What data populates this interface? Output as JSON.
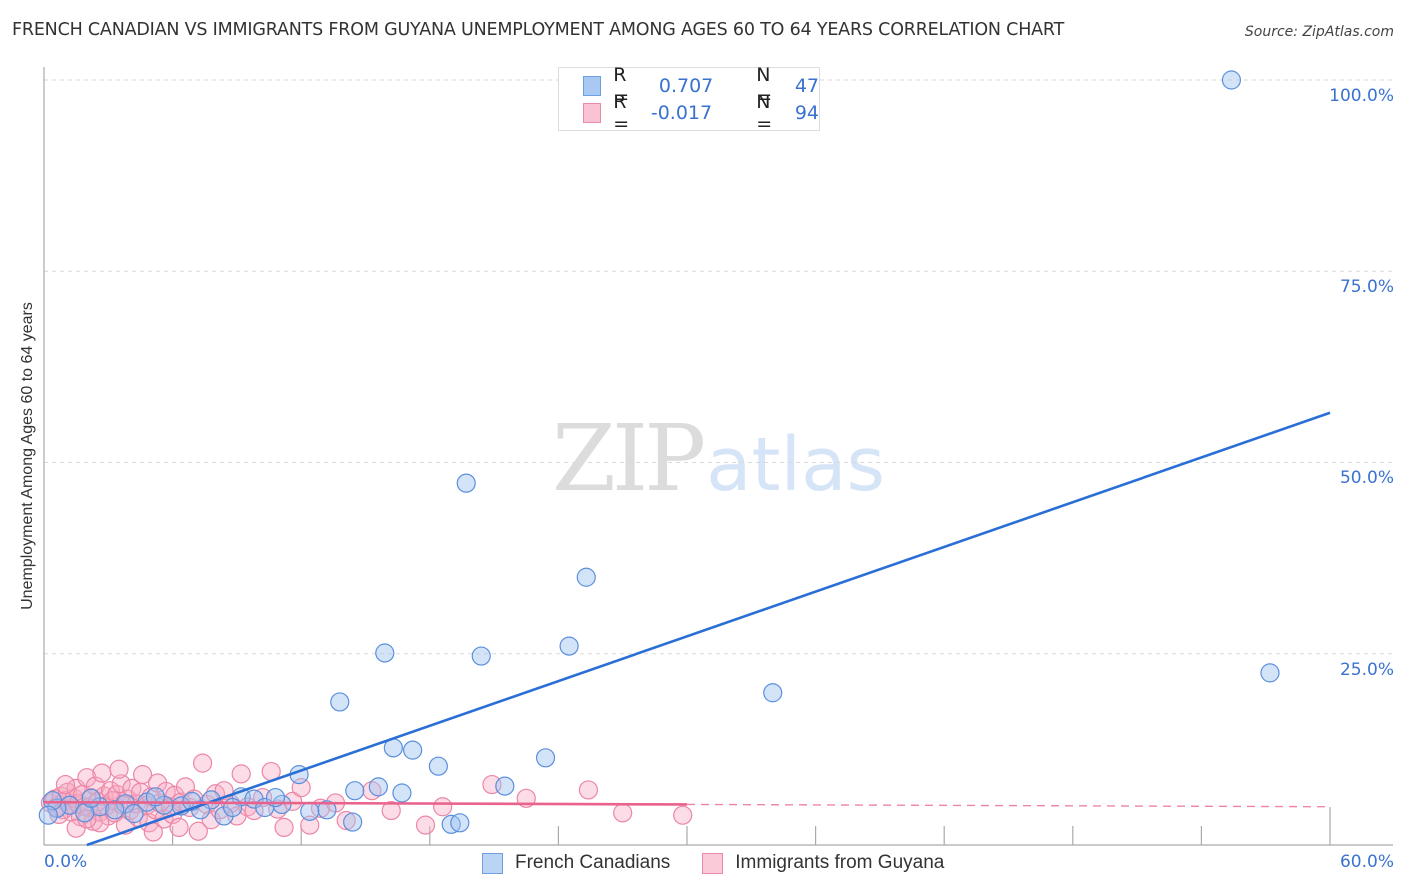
{
  "header": {
    "title": "FRENCH CANADIAN VS IMMIGRANTS FROM GUYANA UNEMPLOYMENT AMONG AGES 60 TO 64 YEARS CORRELATION CHART",
    "source": "Source: ZipAtlas.com"
  },
  "watermark": {
    "zip": "ZIP",
    "atlas": "atlas"
  },
  "axes": {
    "ylabel": "Unemployment Among Ages 60 to 64 years",
    "y_ticks": [
      "100.0%",
      "75.0%",
      "50.0%",
      "25.0%"
    ],
    "x_tick_left": "0.0%",
    "x_tick_right": "60.0%"
  },
  "legend_top": {
    "rows": [
      {
        "r_label": "R =",
        "r_value": "0.707",
        "n_label": "N =",
        "n_value": "47",
        "color": "#a9c9f2",
        "border": "#6f9fe0"
      },
      {
        "r_label": "R =",
        "r_value": "-0.017",
        "n_label": "N =",
        "n_value": "94",
        "color": "#f9c3d3",
        "border": "#e88aa8"
      }
    ]
  },
  "legend_bottom": {
    "items": [
      {
        "label": "French Canadians",
        "color": "#b9d4f5",
        "border": "#6f9fe0"
      },
      {
        "label": "Immigrants from Guyana",
        "color": "#fbcad8",
        "border": "#e88aa8"
      }
    ]
  },
  "colors": {
    "blue_fill": "rgba(160,196,240,0.45)",
    "blue_stroke": "#5b8fdc",
    "blue_line": "#2a6fd6",
    "pink_fill": "rgba(248,170,195,0.40)",
    "pink_stroke": "#ec86a6",
    "pink_line": "#e8628c",
    "grid": "#d9d9d9",
    "axis": "#aaaaaa"
  },
  "chart_data": {
    "type": "scatter",
    "title": "FRENCH CANADIAN VS IMMIGRANTS FROM GUYANA UNEMPLOYMENT AMONG AGES 60 TO 64 YEARS CORRELATION CHART",
    "xlabel": "",
    "ylabel": "Unemployment Among Ages 60 to 64 years",
    "xlim": [
      0,
      60
    ],
    "ylim": [
      0,
      100
    ],
    "x_ticks": [
      0,
      6,
      12,
      18,
      24,
      30,
      36,
      42,
      48,
      54,
      60
    ],
    "y_ticks": [
      25,
      50,
      75,
      100
    ],
    "grid": true,
    "legend_position": "top-center",
    "series": [
      {
        "name": "French Canadians",
        "R": 0.707,
        "N": 47,
        "trendline": {
          "x": [
            2.0,
            60.0
          ],
          "y": [
            0.0,
            56.5
          ],
          "style": "solid"
        },
        "points": [
          [
            55.4,
            100.0
          ],
          [
            19.7,
            47.3
          ],
          [
            25.3,
            35.0
          ],
          [
            15.9,
            25.1
          ],
          [
            20.4,
            24.7
          ],
          [
            24.5,
            26.0
          ],
          [
            57.2,
            22.5
          ],
          [
            34.0,
            19.9
          ],
          [
            13.8,
            18.7
          ],
          [
            16.3,
            12.7
          ],
          [
            17.2,
            12.4
          ],
          [
            23.4,
            11.4
          ],
          [
            18.4,
            10.3
          ],
          [
            11.9,
            9.2
          ],
          [
            21.5,
            7.7
          ],
          [
            14.5,
            7.1
          ],
          [
            15.6,
            7.6
          ],
          [
            16.7,
            6.8
          ],
          [
            9.2,
            6.3
          ],
          [
            9.8,
            6.0
          ],
          [
            7.8,
            5.9
          ],
          [
            11.1,
            5.3
          ],
          [
            10.3,
            4.9
          ],
          [
            13.2,
            4.6
          ],
          [
            12.4,
            4.4
          ],
          [
            6.4,
            5.1
          ],
          [
            7.3,
            4.6
          ],
          [
            8.4,
            3.8
          ],
          [
            14.4,
            3.0
          ],
          [
            19.0,
            2.7
          ],
          [
            19.4,
            2.9
          ],
          [
            3.8,
            5.4
          ],
          [
            4.8,
            5.6
          ],
          [
            5.6,
            5.2
          ],
          [
            2.6,
            5.0
          ],
          [
            3.3,
            4.6
          ],
          [
            1.2,
            5.2
          ],
          [
            0.6,
            4.8
          ],
          [
            0.4,
            5.8
          ],
          [
            1.9,
            4.2
          ],
          [
            2.2,
            6.1
          ],
          [
            4.2,
            4.1
          ],
          [
            5.2,
            6.3
          ],
          [
            6.9,
            5.7
          ],
          [
            8.8,
            4.9
          ],
          [
            0.2,
            3.9
          ],
          [
            10.8,
            6.2
          ]
        ]
      },
      {
        "name": "Immigrants from Guyana",
        "R": -0.017,
        "N": 94,
        "trendline": {
          "x": [
            0.0,
            30.0,
            60.0
          ],
          "y": [
            5.6,
            5.3,
            5.0
          ],
          "style": "solid-then-dashed"
        },
        "points": [
          [
            0.3,
            5.5
          ],
          [
            0.5,
            6.0
          ],
          [
            0.6,
            5.0
          ],
          [
            0.8,
            6.4
          ],
          [
            0.9,
            4.6
          ],
          [
            1.0,
            5.8
          ],
          [
            1.1,
            6.9
          ],
          [
            1.2,
            5.2
          ],
          [
            1.3,
            4.3
          ],
          [
            1.4,
            6.1
          ],
          [
            1.5,
            7.4
          ],
          [
            1.6,
            5.4
          ],
          [
            1.7,
            3.7
          ],
          [
            1.8,
            6.6
          ],
          [
            1.9,
            5.0
          ],
          [
            2.0,
            8.8
          ],
          [
            2.1,
            4.9
          ],
          [
            2.2,
            6.2
          ],
          [
            2.3,
            3.1
          ],
          [
            2.4,
            7.7
          ],
          [
            2.5,
            5.7
          ],
          [
            2.6,
            4.3
          ],
          [
            2.7,
            9.4
          ],
          [
            2.8,
            6.4
          ],
          [
            2.9,
            5.1
          ],
          [
            3.0,
            3.8
          ],
          [
            3.1,
            7.1
          ],
          [
            3.2,
            5.8
          ],
          [
            3.3,
            4.2
          ],
          [
            3.4,
            6.6
          ],
          [
            3.6,
            8.0
          ],
          [
            3.7,
            5.2
          ],
          [
            3.8,
            2.6
          ],
          [
            3.9,
            6.0
          ],
          [
            4.0,
            4.5
          ],
          [
            4.1,
            7.4
          ],
          [
            4.3,
            5.4
          ],
          [
            4.4,
            3.6
          ],
          [
            4.5,
            6.9
          ],
          [
            4.6,
            9.2
          ],
          [
            4.8,
            5.2
          ],
          [
            4.9,
            2.9
          ],
          [
            5.0,
            6.3
          ],
          [
            5.2,
            4.6
          ],
          [
            5.3,
            8.1
          ],
          [
            5.4,
            5.5
          ],
          [
            5.6,
            3.4
          ],
          [
            5.7,
            7.0
          ],
          [
            5.9,
            5.0
          ],
          [
            6.0,
            4.0
          ],
          [
            6.1,
            6.5
          ],
          [
            6.3,
            2.3
          ],
          [
            6.4,
            5.6
          ],
          [
            6.6,
            7.6
          ],
          [
            6.8,
            4.9
          ],
          [
            7.0,
            6.0
          ],
          [
            7.2,
            1.8
          ],
          [
            7.4,
            10.7
          ],
          [
            7.6,
            5.3
          ],
          [
            7.8,
            3.3
          ],
          [
            8.0,
            6.7
          ],
          [
            8.2,
            4.6
          ],
          [
            8.4,
            7.1
          ],
          [
            8.7,
            5.4
          ],
          [
            9.0,
            3.8
          ],
          [
            9.2,
            9.3
          ],
          [
            9.5,
            5.0
          ],
          [
            9.8,
            4.5
          ],
          [
            10.2,
            6.2
          ],
          [
            10.6,
            9.6
          ],
          [
            10.9,
            4.7
          ],
          [
            11.2,
            2.3
          ],
          [
            11.6,
            5.7
          ],
          [
            12.0,
            7.5
          ],
          [
            12.4,
            2.6
          ],
          [
            12.9,
            4.8
          ],
          [
            13.6,
            5.5
          ],
          [
            14.1,
            3.2
          ],
          [
            15.3,
            7.1
          ],
          [
            16.2,
            4.5
          ],
          [
            17.8,
            2.6
          ],
          [
            18.6,
            5.0
          ],
          [
            20.9,
            7.9
          ],
          [
            22.5,
            6.1
          ],
          [
            25.4,
            7.2
          ],
          [
            29.8,
            3.9
          ],
          [
            27.0,
            4.2
          ],
          [
            1.5,
            2.2
          ],
          [
            2.6,
            2.9
          ],
          [
            0.7,
            4.0
          ],
          [
            3.5,
            9.9
          ],
          [
            5.1,
            1.7
          ],
          [
            1.0,
            7.9
          ],
          [
            2.0,
            3.4
          ]
        ]
      }
    ]
  }
}
